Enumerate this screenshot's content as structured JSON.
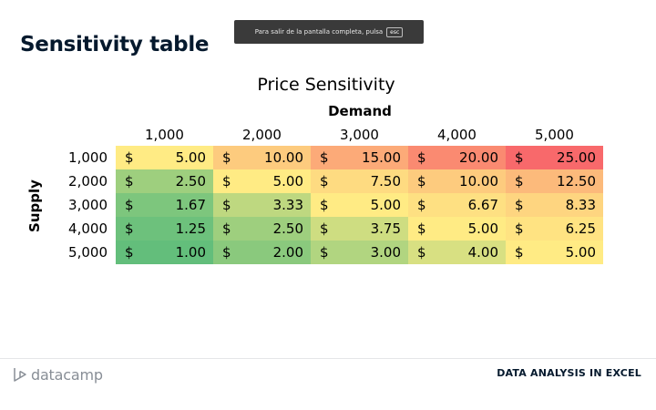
{
  "fullscreen_notice": {
    "text": "Para salir de la pantalla completa, pulsa",
    "key": "esc"
  },
  "slide": {
    "title": "Sensitivity table"
  },
  "table": {
    "title": "Price Sensitivity",
    "column_axis_label": "Demand",
    "row_axis_label": "Supply",
    "currency": "$",
    "columns": [
      "1,000",
      "2,000",
      "3,000",
      "4,000",
      "5,000"
    ],
    "rows": [
      {
        "label": "1,000",
        "values": [
          "5.00",
          "10.00",
          "15.00",
          "20.00",
          "25.00"
        ]
      },
      {
        "label": "2,000",
        "values": [
          "2.50",
          "5.00",
          "7.50",
          "10.00",
          "12.50"
        ]
      },
      {
        "label": "3,000",
        "values": [
          "1.67",
          "3.33",
          "5.00",
          "6.67",
          "8.33"
        ]
      },
      {
        "label": "4,000",
        "values": [
          "1.25",
          "2.50",
          "3.75",
          "5.00",
          "6.25"
        ]
      },
      {
        "label": "5,000",
        "values": [
          "1.00",
          "2.00",
          "3.00",
          "4.00",
          "5.00"
        ]
      }
    ],
    "color_scale": {
      "low": "#63be7b",
      "mid": "#ffeb84",
      "high": "#f8696b"
    }
  },
  "footer": {
    "brand": "datacamp",
    "course": "DATA ANALYSIS IN EXCEL"
  }
}
